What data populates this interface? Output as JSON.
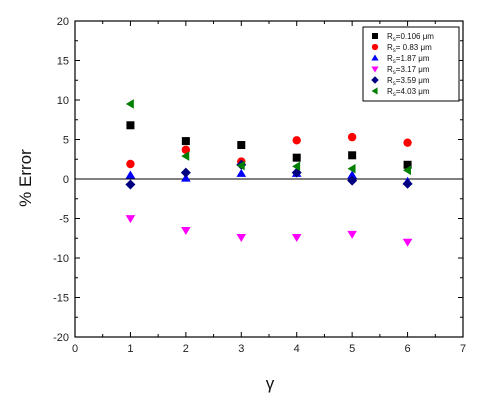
{
  "chart_data": {
    "type": "scatter",
    "xlabel": "γ",
    "ylabel": "% Error",
    "xlim": [
      0,
      7
    ],
    "ylim": [
      -20,
      20
    ],
    "x_ticks": [
      0,
      1,
      2,
      3,
      4,
      5,
      6,
      7
    ],
    "y_ticks": [
      -20,
      -15,
      -10,
      -5,
      0,
      5,
      10,
      15,
      20
    ],
    "grid": false,
    "zero_line": true,
    "legend_position": "top-right",
    "series": [
      {
        "name": "R_s=0.106 μm",
        "legend_prefix": "R",
        "legend_sub": "s",
        "legend_rest": "=0.106 μm",
        "marker": "square",
        "color": "#000000",
        "x": [
          1,
          2,
          3,
          4,
          5,
          6
        ],
        "y": [
          6.8,
          4.8,
          4.3,
          2.7,
          3.0,
          1.8
        ]
      },
      {
        "name": "R_s= 0.83 μm",
        "legend_prefix": "R",
        "legend_sub": "s",
        "legend_rest": "= 0.83 μm",
        "marker": "circle",
        "color": "#ff0000",
        "x": [
          1,
          2,
          3,
          4,
          5,
          6
        ],
        "y": [
          1.9,
          3.7,
          2.2,
          4.9,
          5.3,
          4.6
        ]
      },
      {
        "name": "R_s=1.87 μm",
        "legend_prefix": "R",
        "legend_sub": "s",
        "legend_rest": "=1.87 μm",
        "marker": "triangle-up",
        "color": "#0000ff",
        "x": [
          1,
          2,
          3,
          4,
          5,
          6
        ],
        "y": [
          0.5,
          0.1,
          0.7,
          0.7,
          0.5,
          -0.3
        ]
      },
      {
        "name": "R_s=3.17 μm",
        "legend_prefix": "R",
        "legend_sub": "s",
        "legend_rest": "=3.17 μm",
        "marker": "triangle-down",
        "color": "#ff00ff",
        "x": [
          1,
          2,
          3,
          4,
          5,
          6
        ],
        "y": [
          -5.0,
          -6.5,
          -7.4,
          -7.4,
          -7.0,
          -8.0
        ]
      },
      {
        "name": "R_s=3.59 μm",
        "legend_prefix": "R",
        "legend_sub": "s",
        "legend_rest": "=3.59 μm",
        "marker": "diamond",
        "color": "#000080",
        "x": [
          1,
          2,
          3,
          4,
          5,
          6
        ],
        "y": [
          -0.7,
          0.8,
          1.8,
          0.8,
          -0.2,
          -0.6
        ]
      },
      {
        "name": "R_s=4.03 μm",
        "legend_prefix": "R",
        "legend_sub": "s",
        "legend_rest": "=4.03 μm",
        "marker": "triangle-left",
        "color": "#008000",
        "x": [
          1,
          2,
          3,
          4,
          5,
          6
        ],
        "y": [
          9.5,
          2.9,
          1.7,
          1.6,
          1.3,
          1.1
        ]
      }
    ]
  }
}
